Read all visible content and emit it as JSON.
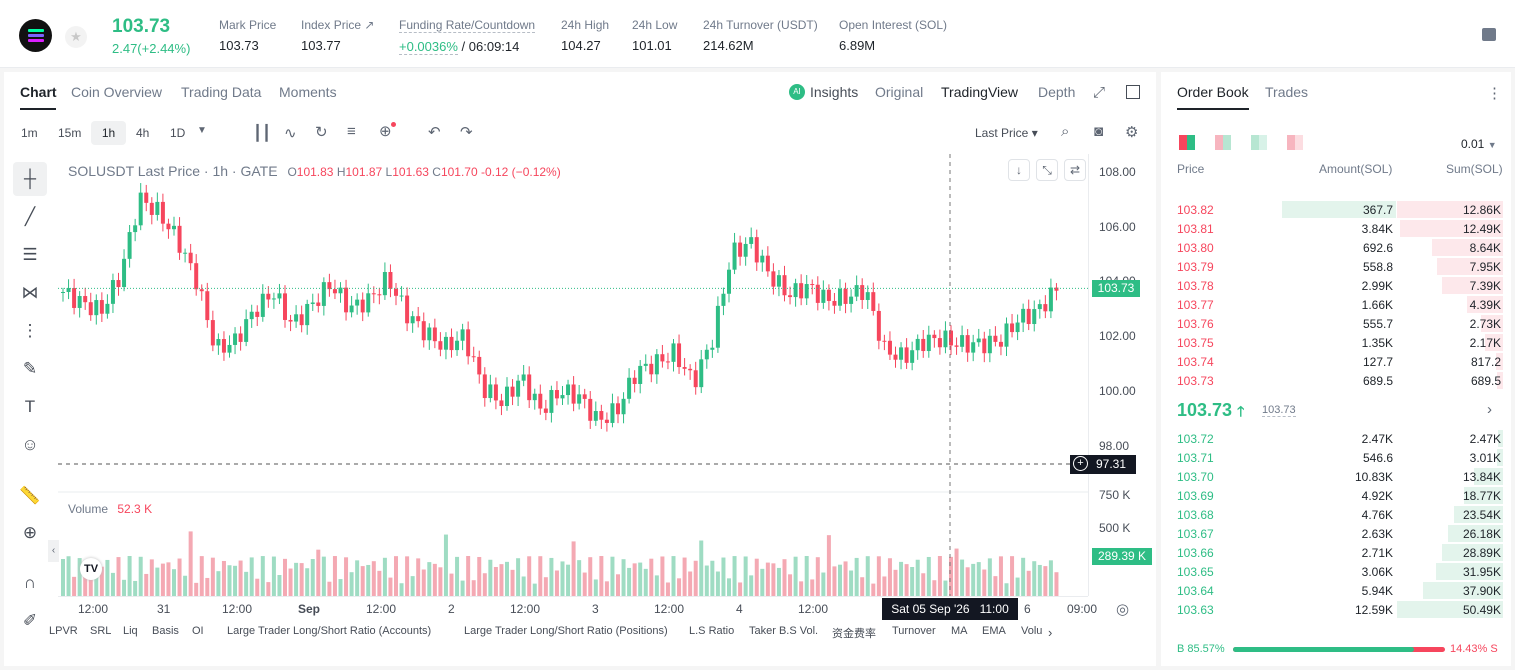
{
  "header": {
    "last_price": "103.73",
    "change": "2.47(+2.44%)",
    "stats": [
      {
        "label": "Mark Price",
        "value": "103.73"
      },
      {
        "label": "Index Price ↗",
        "value": "103.77"
      },
      {
        "label": "Funding Rate/Countdown",
        "value": "+0.0036%",
        "value2": "/ 06:09:14"
      },
      {
        "label": "24h High",
        "value": "104.27"
      },
      {
        "label": "24h Low",
        "value": "101.01"
      },
      {
        "label": "24h Turnover (USDT)",
        "value": "214.62M"
      },
      {
        "label": "Open Interest (SOL)",
        "value": "6.89M"
      }
    ]
  },
  "chart_tabs": [
    "Chart",
    "Coin Overview",
    "Trading Data",
    "Moments"
  ],
  "view_tabs": {
    "insights": "Insights",
    "original": "Original",
    "tradingview": "TradingView",
    "depth": "Depth",
    "ai": "AI"
  },
  "intervals": [
    "1m",
    "15m",
    "1h",
    "4h",
    "1D"
  ],
  "price_type": "Last Price",
  "legend": {
    "symbol": "SOLUSDT Last Price · 1h · GATE",
    "o": "101.83",
    "h": "101.87",
    "l": "101.63",
    "c": "101.70",
    "chg": "-0.12 (−0.12%)",
    "O": "O",
    "H": "H",
    "L": "L",
    "C": "C"
  },
  "volume": {
    "label": "Volume",
    "value": "52.3 K"
  },
  "y_ticks": [
    "108.00",
    "106.00",
    "104.00",
    "102.00",
    "100.00",
    "98.00"
  ],
  "vol_ticks": [
    "750 K",
    "500 K"
  ],
  "price_tag": "103.73",
  "cross_tag": "97.31",
  "vol_tag": "289.39 K",
  "x_ticks": [
    "12:00",
    "31",
    "12:00",
    "Sep",
    "12:00",
    "2",
    "12:00",
    "3",
    "12:00",
    "4",
    "12:00",
    "6",
    "09:00"
  ],
  "x_cross": "Sat 05 Sep '26   11:00",
  "bottom_tabs": [
    "LPVR",
    "SRL",
    "Liq",
    "Basis",
    "OI",
    "Large Trader Long/Short Ratio (Accounts)",
    "Large Trader Long/Short Ratio (Positions)",
    "L.S Ratio",
    "Taker B.S Vol.",
    "资金费率",
    "Turnover",
    "MA",
    "EMA",
    "Volu"
  ],
  "orderbook": {
    "tabs": [
      "Order Book",
      "Trades"
    ],
    "precision": "0.01",
    "headers": [
      "Price",
      "Amount(SOL)",
      "Sum(SOL)"
    ],
    "asks": [
      [
        "103.82",
        "367.7",
        "12.86K"
      ],
      [
        "103.81",
        "3.84K",
        "12.49K"
      ],
      [
        "103.80",
        "692.6",
        "8.64K"
      ],
      [
        "103.79",
        "558.8",
        "7.95K"
      ],
      [
        "103.78",
        "2.99K",
        "7.39K"
      ],
      [
        "103.77",
        "1.66K",
        "4.39K"
      ],
      [
        "103.76",
        "555.7",
        "2.73K"
      ],
      [
        "103.75",
        "1.35K",
        "2.17K"
      ],
      [
        "103.74",
        "127.7",
        "817.2"
      ],
      [
        "103.73",
        "689.5",
        "689.5"
      ]
    ],
    "mid": "103.73",
    "mid_sub": "103.73",
    "bids": [
      [
        "103.72",
        "2.47K",
        "2.47K"
      ],
      [
        "103.71",
        "546.6",
        "3.01K"
      ],
      [
        "103.70",
        "10.83K",
        "13.84K"
      ],
      [
        "103.69",
        "4.92K",
        "18.77K"
      ],
      [
        "103.68",
        "4.76K",
        "23.54K"
      ],
      [
        "103.67",
        "2.63K",
        "26.18K"
      ],
      [
        "103.66",
        "2.71K",
        "28.89K"
      ],
      [
        "103.65",
        "3.06K",
        "31.95K"
      ],
      [
        "103.64",
        "5.94K",
        "37.90K"
      ],
      [
        "103.63",
        "12.59K",
        "50.49K"
      ]
    ],
    "buy": "B 85.57%",
    "sell": "14.43% S",
    "buy_pct": 85.57
  },
  "colors": {
    "up": "#2ebd85",
    "down": "#f6465d"
  }
}
